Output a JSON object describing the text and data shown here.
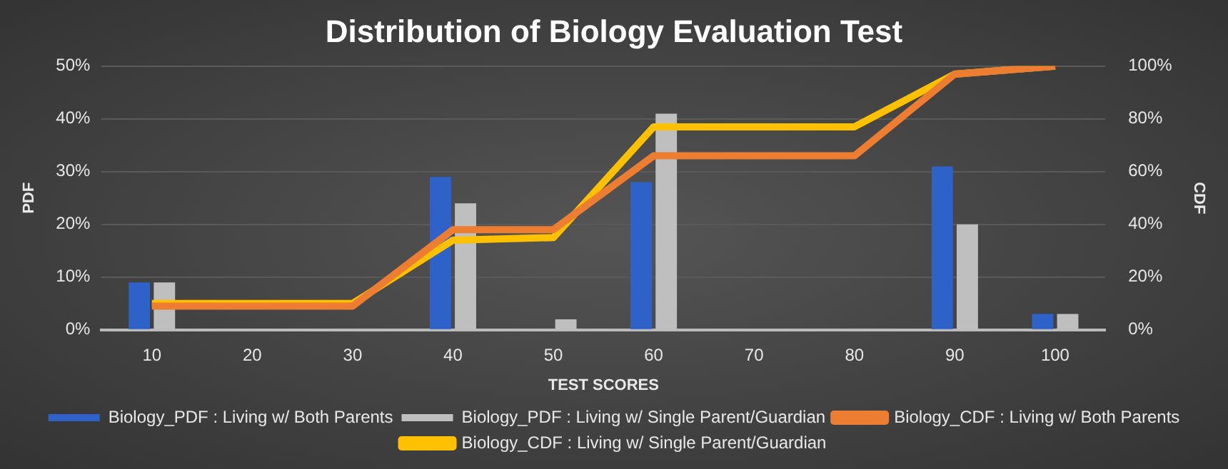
{
  "chart_data": {
    "type": "bar",
    "title": "Distribution of Biology Evaluation Test",
    "xlabel": "TEST SCORES",
    "ylabel": "PDF",
    "y2label": "CDF",
    "categories": [
      "10",
      "20",
      "30",
      "40",
      "50",
      "60",
      "70",
      "80",
      "90",
      "100"
    ],
    "series": [
      {
        "name": "Biology_PDF : Living w/ Both Parents",
        "color": "#2e62c8",
        "values": [
          9,
          0,
          0,
          29,
          0,
          28,
          0,
          0,
          31,
          3
        ]
      },
      {
        "name": "Biology_PDF : Living w/ Single Parent/Guardian",
        "color": "#bfbfbf",
        "values": [
          9,
          0,
          0,
          24,
          2,
          41,
          0,
          0,
          20,
          3
        ]
      },
      {
        "name": "Biology_CDF : Living w/ Both Parents",
        "type": "line",
        "axis": "y2",
        "color": "#ed7d31",
        "values": [
          9,
          9,
          9,
          38,
          38,
          66,
          66,
          66,
          97,
          100
        ]
      },
      {
        "name": "Biology_CDF : Living w/ Single Parent/Guardian",
        "type": "line",
        "axis": "y2",
        "color": "#ffc000",
        "values": [
          10,
          10,
          10,
          34,
          35,
          77,
          77,
          77,
          97,
          100
        ]
      }
    ],
    "ylim": [
      0,
      50
    ],
    "yticks": [
      {
        "value": 0,
        "label": "0%"
      },
      {
        "value": 10,
        "label": "10%"
      },
      {
        "value": 20,
        "label": "20%"
      },
      {
        "value": 30,
        "label": "30%"
      },
      {
        "value": 40,
        "label": "40%"
      },
      {
        "value": 50,
        "label": "50%"
      }
    ],
    "y2lim": [
      0,
      100
    ],
    "y2ticks": [
      {
        "value": 0,
        "label": "0%"
      },
      {
        "value": 20,
        "label": "20%"
      },
      {
        "value": 40,
        "label": "40%"
      },
      {
        "value": 60,
        "label": "60%"
      },
      {
        "value": 80,
        "label": "80%"
      },
      {
        "value": 100,
        "label": "100%"
      }
    ],
    "grid": "y",
    "legend": "bottom",
    "marker": "none"
  }
}
